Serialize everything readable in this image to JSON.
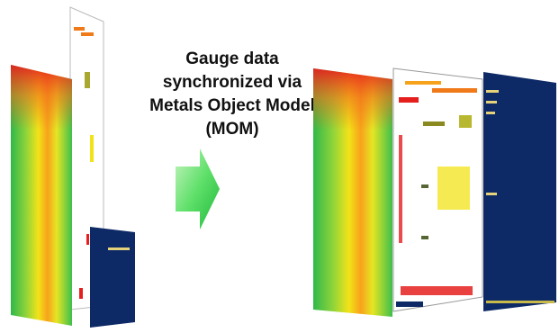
{
  "caption": {
    "lines": [
      "Gauge data",
      "synchronized via",
      "Metals Object Model",
      "(MOM)"
    ]
  }
}
